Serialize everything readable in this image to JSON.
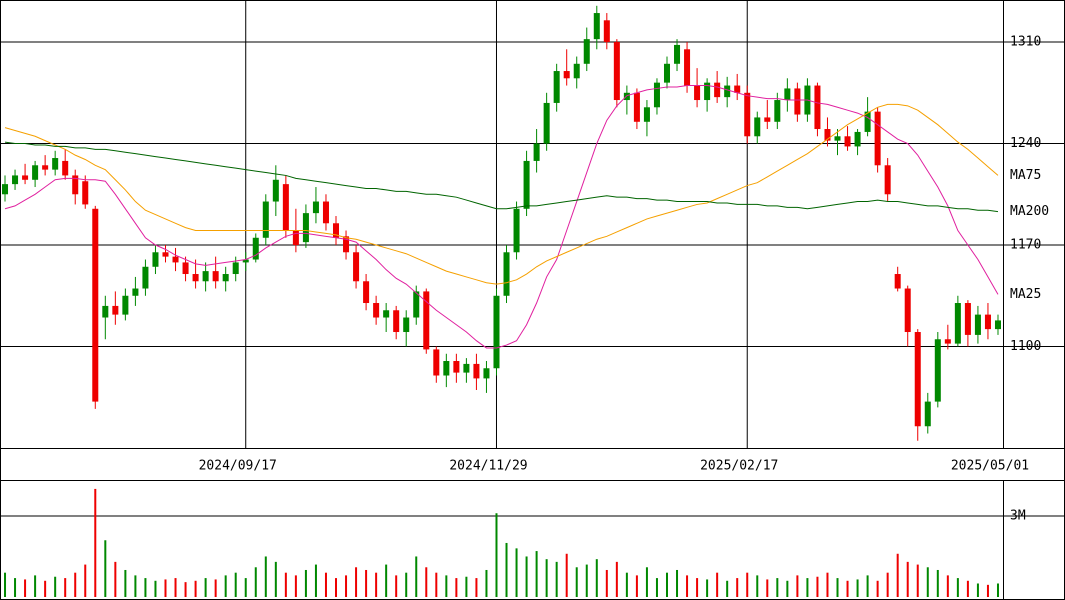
{
  "chart_data": {
    "type": "candlestick",
    "categories": [
      null,
      null,
      null,
      null,
      null,
      null,
      null,
      null,
      null,
      null,
      null,
      null,
      null,
      null,
      null,
      null,
      null,
      null,
      null,
      null,
      null,
      null,
      null,
      null,
      "2024/09/17",
      null,
      null,
      null,
      null,
      null,
      null,
      null,
      null,
      null,
      null,
      null,
      null,
      null,
      null,
      null,
      null,
      null,
      null,
      null,
      null,
      null,
      null,
      null,
      null,
      "2024/11/29",
      null,
      null,
      null,
      null,
      null,
      null,
      null,
      null,
      null,
      null,
      null,
      null,
      null,
      null,
      null,
      null,
      null,
      null,
      null,
      null,
      null,
      null,
      null,
      null,
      "2025/02/17",
      null,
      null,
      null,
      null,
      null,
      null,
      null,
      null,
      null,
      null,
      null,
      null,
      null,
      null,
      null,
      null,
      null,
      null,
      null,
      null,
      null,
      null,
      null,
      null,
      "2025/05/01"
    ],
    "open": [
      1205,
      1212,
      1218,
      1215,
      1225,
      1222,
      1228,
      1218,
      1214,
      1195,
      1120,
      1128,
      1122,
      1135,
      1140,
      1155,
      1165,
      1162,
      1158,
      1150,
      1145,
      1152,
      1145,
      1150,
      1158,
      1160,
      1175,
      1200,
      1212,
      1180,
      1172,
      1192,
      1200,
      1185,
      1176,
      1165,
      1145,
      1130,
      1120,
      1125,
      1110,
      1120,
      1138,
      1098,
      1080,
      1090,
      1082,
      1088,
      1078,
      1085,
      1135,
      1165,
      1195,
      1228,
      1240,
      1268,
      1290,
      1285,
      1295,
      1312,
      1325,
      1310,
      1270,
      1275,
      1255,
      1265,
      1282,
      1295,
      1305,
      1280,
      1270,
      1282,
      1272,
      1280,
      1275,
      1245,
      1258,
      1255,
      1270,
      1278,
      1260,
      1280,
      1250,
      1242,
      1245,
      1238,
      1248,
      1262,
      1225,
      1150,
      1140,
      1110,
      1045,
      1062,
      1105,
      1102,
      1130,
      1108,
      1122,
      1112
    ],
    "high": [
      1218,
      1222,
      1226,
      1228,
      1232,
      1235,
      1236,
      1222,
      1218,
      1197,
      1135,
      1138,
      1140,
      1148,
      1160,
      1170,
      1170,
      1168,
      1162,
      1160,
      1158,
      1162,
      1155,
      1162,
      1165,
      1178,
      1205,
      1225,
      1218,
      1195,
      1198,
      1210,
      1205,
      1190,
      1180,
      1170,
      1150,
      1135,
      1130,
      1128,
      1125,
      1142,
      1140,
      1100,
      1095,
      1095,
      1092,
      1095,
      1090,
      1140,
      1170,
      1200,
      1235,
      1250,
      1275,
      1295,
      1305,
      1300,
      1320,
      1335,
      1330,
      1312,
      1280,
      1278,
      1270,
      1285,
      1300,
      1312,
      1310,
      1292,
      1285,
      1290,
      1286,
      1288,
      1280,
      1262,
      1270,
      1275,
      1285,
      1282,
      1285,
      1282,
      1258,
      1250,
      1252,
      1250,
      1272,
      1265,
      1230,
      1155,
      1142,
      1112,
      1068,
      1110,
      1115,
      1135,
      1132,
      1128,
      1130,
      1122
    ],
    "low": [
      1200,
      1208,
      1212,
      1210,
      1218,
      1218,
      1215,
      1198,
      1195,
      1057,
      1105,
      1115,
      1118,
      1128,
      1135,
      1150,
      1158,
      1152,
      1145,
      1140,
      1138,
      1140,
      1138,
      1145,
      1152,
      1158,
      1170,
      1190,
      1175,
      1165,
      1168,
      1185,
      1180,
      1170,
      1160,
      1140,
      1125,
      1115,
      1110,
      1105,
      1100,
      1115,
      1095,
      1075,
      1072,
      1075,
      1075,
      1070,
      1068,
      1080,
      1130,
      1160,
      1190,
      1220,
      1235,
      1262,
      1280,
      1278,
      1290,
      1305,
      1305,
      1265,
      1260,
      1250,
      1245,
      1260,
      1278,
      1290,
      1275,
      1265,
      1262,
      1268,
      1265,
      1270,
      1240,
      1240,
      1250,
      1250,
      1262,
      1255,
      1255,
      1245,
      1238,
      1232,
      1235,
      1232,
      1245,
      1220,
      1200,
      1138,
      1100,
      1035,
      1040,
      1058,
      1098,
      1100,
      1100,
      1102,
      1105,
      1108
    ],
    "close": [
      1212,
      1218,
      1215,
      1225,
      1222,
      1230,
      1218,
      1205,
      1198,
      1062,
      1128,
      1122,
      1135,
      1140,
      1155,
      1165,
      1162,
      1158,
      1150,
      1145,
      1152,
      1145,
      1150,
      1158,
      1160,
      1175,
      1200,
      1215,
      1180,
      1170,
      1192,
      1200,
      1185,
      1175,
      1165,
      1145,
      1130,
      1120,
      1125,
      1110,
      1120,
      1138,
      1098,
      1080,
      1090,
      1082,
      1088,
      1078,
      1085,
      1135,
      1165,
      1195,
      1228,
      1240,
      1268,
      1290,
      1285,
      1295,
      1312,
      1330,
      1310,
      1270,
      1275,
      1255,
      1265,
      1282,
      1295,
      1308,
      1280,
      1270,
      1282,
      1272,
      1280,
      1275,
      1245,
      1258,
      1255,
      1270,
      1278,
      1260,
      1280,
      1250,
      1242,
      1245,
      1238,
      1248,
      1262,
      1225,
      1205,
      1140,
      1110,
      1045,
      1062,
      1105,
      1102,
      1130,
      1108,
      1122,
      1112,
      1118
    ],
    "up_color": "#008800",
    "down_color": "#ee0000",
    "series": [
      {
        "name": "MA25",
        "color": "#e0209f",
        "values": [
          1195,
          1197,
          1201,
          1205,
          1210,
          1215,
          1216,
          1216,
          1215,
          1215,
          1214,
          1205,
          1195,
          1185,
          1175,
          1170,
          1167,
          1163,
          1160,
          1157,
          1156,
          1157,
          1158,
          1159,
          1160,
          1163,
          1168,
          1172,
          1176,
          1178,
          1178,
          1177,
          1176,
          1175,
          1174,
          1172,
          1166,
          1160,
          1153,
          1147,
          1143,
          1137,
          1131,
          1125,
          1120,
          1115,
          1110,
          1104,
          1099,
          1099,
          1101,
          1104,
          1115,
          1130,
          1148,
          1160,
          1180,
          1200,
          1220,
          1240,
          1256,
          1266,
          1273,
          1275,
          1277,
          1278,
          1279,
          1279,
          1280,
          1280,
          1280,
          1279,
          1277,
          1275,
          1273,
          1272,
          1271,
          1271,
          1270,
          1270,
          1270,
          1268,
          1267,
          1265,
          1263,
          1261,
          1258,
          1253,
          1248,
          1243,
          1240,
          1232,
          1221,
          1210,
          1197,
          1180,
          1170,
          1160,
          1148,
          1136
        ]
      },
      {
        "name": "MA75",
        "color": "#f5a000",
        "values": [
          1251,
          1249,
          1247,
          1245,
          1242,
          1239,
          1236,
          1232,
          1229,
          1225,
          1222,
          1215,
          1208,
          1200,
          1194,
          1191,
          1188,
          1185,
          1182,
          1180,
          1180,
          1180,
          1180,
          1180,
          1180,
          1180,
          1180,
          1180,
          1180,
          1180,
          1180,
          1179,
          1178,
          1177,
          1175,
          1174,
          1172,
          1170,
          1168,
          1166,
          1164,
          1161,
          1158,
          1155,
          1152,
          1150,
          1148,
          1146,
          1144,
          1143,
          1144,
          1146,
          1150,
          1155,
          1159,
          1162,
          1165,
          1168,
          1171,
          1174,
          1176,
          1179,
          1182,
          1185,
          1188,
          1190,
          1192,
          1194,
          1196,
          1198,
          1199,
          1202,
          1205,
          1208,
          1211,
          1213,
          1217,
          1221,
          1225,
          1229,
          1233,
          1238,
          1243,
          1248,
          1253,
          1257,
          1261,
          1265,
          1267,
          1267,
          1266,
          1263,
          1258,
          1253,
          1247,
          1241,
          1236,
          1230,
          1224,
          1218
        ]
      },
      {
        "name": "MA200",
        "color": "#006400",
        "values": [
          1241,
          1240,
          1240,
          1239,
          1239,
          1238,
          1238,
          1237,
          1237,
          1236,
          1236,
          1235,
          1234,
          1233,
          1232,
          1231,
          1230,
          1229,
          1228,
          1227,
          1226,
          1225,
          1224,
          1223,
          1222,
          1221,
          1220,
          1219,
          1218,
          1216,
          1215,
          1214,
          1213,
          1212,
          1211,
          1210,
          1209,
          1209,
          1208,
          1207,
          1207,
          1206,
          1205,
          1205,
          1204,
          1203,
          1201,
          1199,
          1197,
          1195,
          1195,
          1196,
          1197,
          1197,
          1198,
          1199,
          1200,
          1201,
          1202,
          1203,
          1204,
          1203,
          1203,
          1202,
          1202,
          1201,
          1201,
          1200,
          1200,
          1200,
          1200,
          1199,
          1199,
          1198,
          1198,
          1198,
          1197,
          1197,
          1196,
          1196,
          1195,
          1196,
          1197,
          1198,
          1199,
          1200,
          1200,
          1201,
          1200,
          1200,
          1199,
          1198,
          1197,
          1197,
          1196,
          1195,
          1195,
          1194,
          1194,
          1193
        ]
      }
    ],
    "ylim": [
      1030,
      1339
    ],
    "yticks": [
      1100,
      1170,
      1240,
      1310
    ],
    "grid": true,
    "volume": {
      "values": [
        900000,
        700000,
        650000,
        800000,
        600000,
        750000,
        700000,
        900000,
        1200000,
        4000000,
        2100000,
        1300000,
        1000000,
        800000,
        700000,
        600000,
        650000,
        700000,
        550000,
        600000,
        700000,
        650000,
        800000,
        900000,
        700000,
        1100000,
        1500000,
        1300000,
        900000,
        800000,
        1000000,
        1200000,
        900000,
        700000,
        800000,
        1100000,
        1000000,
        900000,
        1200000,
        800000,
        900000,
        1500000,
        1100000,
        900000,
        800000,
        700000,
        750000,
        700000,
        1000000,
        3100000,
        2000000,
        1800000,
        1500000,
        1700000,
        1400000,
        1300000,
        1600000,
        1100000,
        1200000,
        1400000,
        1000000,
        1300000,
        900000,
        800000,
        1100000,
        700000,
        900000,
        1000000,
        800000,
        700000,
        650000,
        900000,
        600000,
        700000,
        900000,
        800000,
        650000,
        700000,
        600000,
        800000,
        700000,
        750000,
        900000,
        700000,
        600000,
        650000,
        800000,
        600000,
        900000,
        1600000,
        1300000,
        1200000,
        1100000,
        1000000,
        800000,
        700000,
        600000,
        500000,
        450000,
        500000
      ],
      "ylim": [
        0,
        4330000
      ],
      "yticks": [
        {
          "value": 3000000,
          "label": "3M"
        }
      ]
    }
  }
}
